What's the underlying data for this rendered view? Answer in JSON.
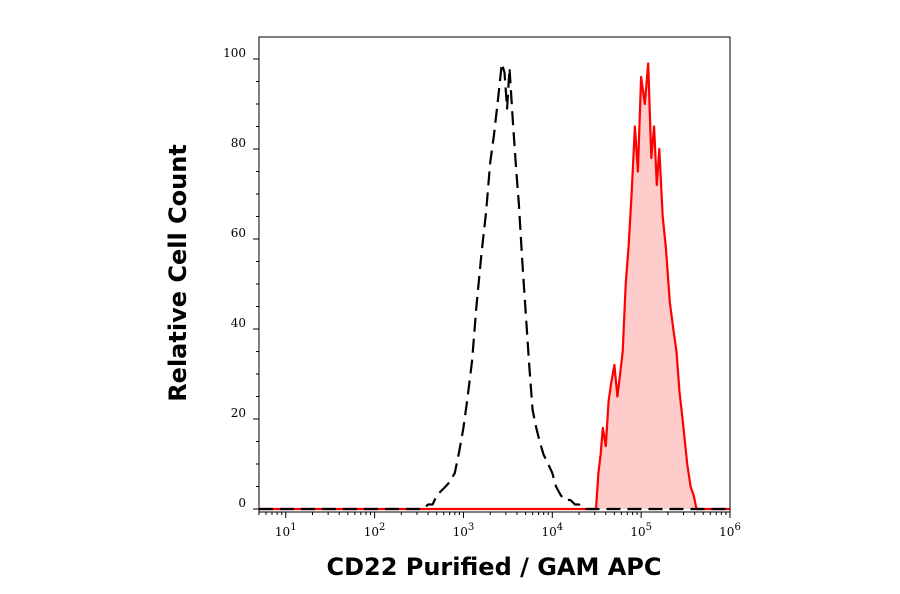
{
  "chart_data": {
    "type": "area",
    "xlabel": "CD22 Purified / GAM APC",
    "ylabel": "Relative Cell Count",
    "x_scale": "log",
    "xlim": [
      5,
      1000000
    ],
    "ylim": [
      0,
      105
    ],
    "x_ticks": [
      {
        "value": 10,
        "base": "10",
        "exp": "1"
      },
      {
        "value": 100,
        "base": "10",
        "exp": "2"
      },
      {
        "value": 1000,
        "base": "10",
        "exp": "3"
      },
      {
        "value": 10000,
        "base": "10",
        "exp": "4"
      },
      {
        "value": 100000,
        "base": "10",
        "exp": "5"
      },
      {
        "value": 1000000,
        "base": "10",
        "exp": "6"
      }
    ],
    "y_ticks": [
      "0",
      "20",
      "40",
      "60",
      "80",
      "100"
    ],
    "grid": false,
    "series": [
      {
        "style": "dashed",
        "color": "#000000",
        "fill": "none",
        "x": [
          5,
          350,
          400,
          450,
          500,
          560,
          630,
          700,
          800,
          900,
          1000,
          1100,
          1250,
          1400,
          1600,
          1800,
          2000,
          2200,
          2450,
          2700,
          2900,
          3100,
          3300,
          3600,
          3900,
          4200,
          4600,
          5000,
          5500,
          6000,
          6600,
          7200,
          8000,
          9000,
          10000,
          11000,
          12500,
          14000,
          16000,
          18000,
          20000,
          23000,
          26000,
          1000000
        ],
        "y": [
          0,
          0,
          1,
          1,
          3,
          4,
          5,
          6,
          8,
          13,
          18,
          24,
          33,
          45,
          57,
          66,
          77,
          83,
          91,
          99,
          97,
          89,
          98,
          86,
          76,
          68,
          55,
          44,
          32,
          22,
          18,
          15,
          12,
          10,
          8,
          5,
          3,
          2,
          2,
          1,
          1,
          0,
          0,
          0
        ]
      },
      {
        "style": "solid",
        "color": "#ff0000",
        "fill": "#ffcccc",
        "x": [
          5,
          31000,
          33000,
          35000,
          37000,
          40000,
          43000,
          46000,
          50000,
          54000,
          58000,
          62000,
          67000,
          72000,
          78000,
          85000,
          92000,
          100000,
          110000,
          120000,
          130000,
          140000,
          150000,
          160000,
          175000,
          190000,
          210000,
          230000,
          250000,
          270000,
          300000,
          330000,
          360000,
          390000,
          420000,
          1000000
        ],
        "y": [
          0,
          0,
          8,
          12,
          18,
          14,
          24,
          28,
          32,
          25,
          30,
          35,
          50,
          58,
          70,
          85,
          75,
          96,
          90,
          99,
          78,
          85,
          72,
          80,
          65,
          58,
          46,
          40,
          35,
          26,
          18,
          10,
          5,
          3,
          0,
          0
        ]
      }
    ]
  }
}
